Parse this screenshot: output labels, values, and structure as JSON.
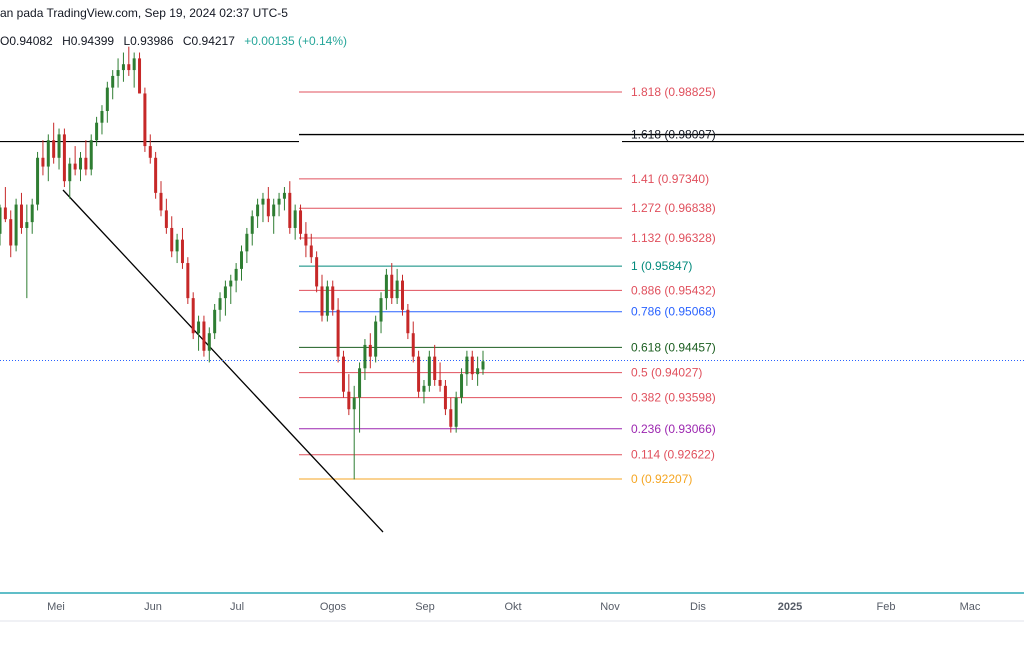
{
  "header": {
    "title": "an pada TradingView.com, Sep 19, 2024 02:37 UTC-5"
  },
  "ohlc": {
    "open": "O0.94082",
    "high": "H0.94399",
    "low": "L0.93986",
    "close": "C0.94217",
    "change": "+0.00135 (+0.14%)"
  },
  "colors": {
    "up": "#26a69a",
    "down": "#ef5350",
    "candle_up": "#2e7d32",
    "candle_down": "#c62828",
    "axis_line": "#0097a7"
  },
  "chart_data": {
    "type": "candlestick",
    "x_ticks": [
      "Mei",
      "Jun",
      "Jul",
      "Ogos",
      "Sep",
      "Okt",
      "Nov",
      "Dis",
      "2025",
      "Feb",
      "Mac"
    ],
    "fib_levels": [
      {
        "level": "1.818",
        "price": 0.98825,
        "label": "1.818 (0.98825)",
        "color": "#e0505d"
      },
      {
        "level": "1.618",
        "price": 0.98097,
        "label": "1.618 (0.98097)",
        "color": "#000000"
      },
      {
        "level": "1.41",
        "price": 0.9734,
        "label": "1.41 (0.97340)",
        "color": "#e0505d"
      },
      {
        "level": "1.272",
        "price": 0.96838,
        "label": "1.272 (0.96838)",
        "color": "#e0505d"
      },
      {
        "level": "1.132",
        "price": 0.96328,
        "label": "1.132 (0.96328)",
        "color": "#e0505d"
      },
      {
        "level": "1",
        "price": 0.95847,
        "label": "1 (0.95847)",
        "color": "#00897b"
      },
      {
        "level": "0.886",
        "price": 0.95432,
        "label": "0.886 (0.95432)",
        "color": "#e0505d"
      },
      {
        "level": "0.786",
        "price": 0.95068,
        "label": "0.786 (0.95068)",
        "color": "#2962ff"
      },
      {
        "level": "0.618",
        "price": 0.94457,
        "label": "0.618 (0.94457)",
        "color": "#1b5e20"
      },
      {
        "level": "0.5",
        "price": 0.94027,
        "label": "0.5 (0.94027)",
        "color": "#e0505d"
      },
      {
        "level": "0.382",
        "price": 0.93598,
        "label": "0.382 (0.93598)",
        "color": "#e0505d"
      },
      {
        "level": "0.236",
        "price": 0.93066,
        "label": "0.236 (0.93066)",
        "color": "#9c27b0"
      },
      {
        "level": "0.114",
        "price": 0.92622,
        "label": "0.114 (0.92622)",
        "color": "#e0505d"
      },
      {
        "level": "0",
        "price": 0.92207,
        "label": "0 (0.92207)",
        "color": "#f5a623"
      }
    ],
    "last_price": 0.94217,
    "candles": [
      [
        0.964,
        0.969,
        0.962,
        0.9685
      ],
      [
        0.9685,
        0.972,
        0.966,
        0.9665
      ],
      [
        0.9665,
        0.968,
        0.96,
        0.962
      ],
      [
        0.962,
        0.97,
        0.961,
        0.969
      ],
      [
        0.969,
        0.971,
        0.964,
        0.965
      ],
      [
        0.965,
        0.969,
        0.953,
        0.966
      ],
      [
        0.966,
        0.97,
        0.964,
        0.969
      ],
      [
        0.969,
        0.978,
        0.968,
        0.977
      ],
      [
        0.977,
        0.98,
        0.974,
        0.9755
      ],
      [
        0.9755,
        0.981,
        0.973,
        0.98
      ],
      [
        0.98,
        0.983,
        0.976,
        0.977
      ],
      [
        0.977,
        0.982,
        0.975,
        0.981
      ],
      [
        0.981,
        0.982,
        0.972,
        0.973
      ],
      [
        0.973,
        0.977,
        0.97,
        0.976
      ],
      [
        0.976,
        0.979,
        0.974,
        0.975
      ],
      [
        0.975,
        0.978,
        0.973,
        0.977
      ],
      [
        0.977,
        0.98,
        0.974,
        0.975
      ],
      [
        0.975,
        0.981,
        0.974,
        0.98
      ],
      [
        0.98,
        0.984,
        0.979,
        0.983
      ],
      [
        0.983,
        0.986,
        0.981,
        0.985
      ],
      [
        0.985,
        0.99,
        0.983,
        0.989
      ],
      [
        0.989,
        0.992,
        0.987,
        0.991
      ],
      [
        0.991,
        0.994,
        0.989,
        0.992
      ],
      [
        0.992,
        0.995,
        0.99,
        0.993
      ],
      [
        0.993,
        0.996,
        0.991,
        0.992
      ],
      [
        0.992,
        0.995,
        0.989,
        0.994
      ],
      [
        0.994,
        0.995,
        0.988,
        0.988
      ],
      [
        0.988,
        0.989,
        0.978,
        0.979
      ],
      [
        0.979,
        0.981,
        0.976,
        0.977
      ],
      [
        0.977,
        0.978,
        0.97,
        0.971
      ],
      [
        0.971,
        0.973,
        0.967,
        0.968
      ],
      [
        0.968,
        0.97,
        0.964,
        0.965
      ],
      [
        0.965,
        0.967,
        0.96,
        0.961
      ],
      [
        0.961,
        0.964,
        0.959,
        0.963
      ],
      [
        0.963,
        0.965,
        0.958,
        0.959
      ],
      [
        0.959,
        0.96,
        0.952,
        0.953
      ],
      [
        0.953,
        0.954,
        0.946,
        0.947
      ],
      [
        0.947,
        0.95,
        0.944,
        0.949
      ],
      [
        0.949,
        0.95,
        0.943,
        0.944
      ],
      [
        0.944,
        0.948,
        0.942,
        0.947
      ],
      [
        0.947,
        0.952,
        0.946,
        0.951
      ],
      [
        0.951,
        0.954,
        0.949,
        0.953
      ],
      [
        0.953,
        0.956,
        0.95,
        0.955
      ],
      [
        0.955,
        0.957,
        0.952,
        0.956
      ],
      [
        0.956,
        0.959,
        0.954,
        0.958
      ],
      [
        0.958,
        0.962,
        0.956,
        0.961
      ],
      [
        0.961,
        0.965,
        0.959,
        0.964
      ],
      [
        0.964,
        0.968,
        0.962,
        0.967
      ],
      [
        0.967,
        0.97,
        0.965,
        0.969
      ],
      [
        0.969,
        0.971,
        0.966,
        0.97
      ],
      [
        0.97,
        0.972,
        0.966,
        0.967
      ],
      [
        0.967,
        0.97,
        0.964,
        0.969
      ],
      [
        0.969,
        0.971,
        0.967,
        0.97
      ],
      [
        0.97,
        0.972,
        0.968,
        0.971
      ],
      [
        0.971,
        0.973,
        0.964,
        0.965
      ],
      [
        0.965,
        0.969,
        0.963,
        0.968
      ],
      [
        0.968,
        0.969,
        0.963,
        0.964
      ],
      [
        0.964,
        0.966,
        0.96,
        0.962
      ],
      [
        0.962,
        0.964,
        0.959,
        0.96
      ],
      [
        0.96,
        0.961,
        0.954,
        0.955
      ],
      [
        0.955,
        0.957,
        0.949,
        0.95
      ],
      [
        0.95,
        0.956,
        0.949,
        0.955
      ],
      [
        0.955,
        0.956,
        0.95,
        0.951
      ],
      [
        0.951,
        0.953,
        0.942,
        0.943
      ],
      [
        0.943,
        0.944,
        0.936,
        0.937
      ],
      [
        0.937,
        0.94,
        0.933,
        0.934
      ],
      [
        0.934,
        0.938,
        0.922,
        0.936
      ],
      [
        0.936,
        0.942,
        0.93,
        0.941
      ],
      [
        0.941,
        0.946,
        0.939,
        0.945
      ],
      [
        0.945,
        0.947,
        0.941,
        0.943
      ],
      [
        0.943,
        0.95,
        0.942,
        0.949
      ],
      [
        0.949,
        0.954,
        0.947,
        0.953
      ],
      [
        0.953,
        0.958,
        0.951,
        0.957
      ],
      [
        0.957,
        0.959,
        0.952,
        0.953
      ],
      [
        0.953,
        0.958,
        0.952,
        0.956
      ],
      [
        0.956,
        0.957,
        0.95,
        0.951
      ],
      [
        0.951,
        0.952,
        0.946,
        0.947
      ],
      [
        0.947,
        0.949,
        0.942,
        0.943
      ],
      [
        0.943,
        0.944,
        0.936,
        0.937
      ],
      [
        0.937,
        0.939,
        0.935,
        0.938
      ],
      [
        0.938,
        0.944,
        0.937,
        0.943
      ],
      [
        0.943,
        0.945,
        0.938,
        0.939
      ],
      [
        0.939,
        0.942,
        0.937,
        0.938
      ],
      [
        0.938,
        0.939,
        0.933,
        0.934
      ],
      [
        0.934,
        0.936,
        0.93,
        0.931
      ],
      [
        0.931,
        0.937,
        0.93,
        0.936
      ],
      [
        0.936,
        0.941,
        0.935,
        0.94
      ],
      [
        0.94,
        0.944,
        0.938,
        0.943
      ],
      [
        0.943,
        0.944,
        0.939,
        0.94
      ],
      [
        0.94,
        0.943,
        0.938,
        0.941
      ],
      [
        0.9408,
        0.944,
        0.9399,
        0.9422
      ]
    ]
  }
}
